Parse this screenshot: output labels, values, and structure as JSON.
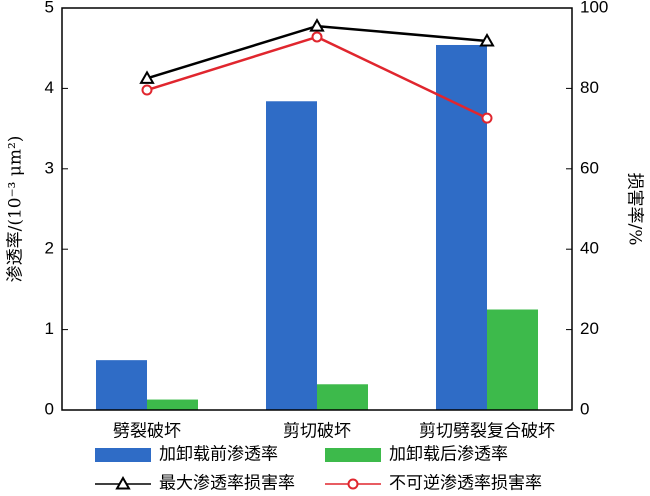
{
  "chart_data": {
    "type": "bar",
    "categories": [
      "劈裂破坏",
      "剪切破坏",
      "剪切劈裂复合破坏"
    ],
    "y_label": "渗透率/(10⁻³ μm²)",
    "y2_label": "损害率/%",
    "ylim": [
      0,
      5
    ],
    "yticks": [
      0,
      1,
      2,
      3,
      4,
      5
    ],
    "y2lim": [
      0,
      100
    ],
    "y2ticks": [
      0,
      20,
      40,
      60,
      80,
      100
    ],
    "series": [
      {
        "name": "加卸载前渗透率",
        "type": "bar",
        "color": "#2f6cc6",
        "values": [
          0.62,
          3.84,
          4.54
        ]
      },
      {
        "name": "加卸载后渗透率",
        "type": "bar",
        "color": "#3dba4b",
        "values": [
          0.13,
          0.32,
          1.25
        ]
      },
      {
        "name": "最大渗透率损害率",
        "type": "line",
        "axis": "y2",
        "color": "#000000",
        "marker": "triangle",
        "values": [
          82.5,
          95.5,
          91.8
        ]
      },
      {
        "name": "不可逆渗透率损害率",
        "type": "line",
        "axis": "y2",
        "color": "#e0262e",
        "marker": "circle",
        "values": [
          79.6,
          92.8,
          72.6
        ]
      }
    ]
  }
}
